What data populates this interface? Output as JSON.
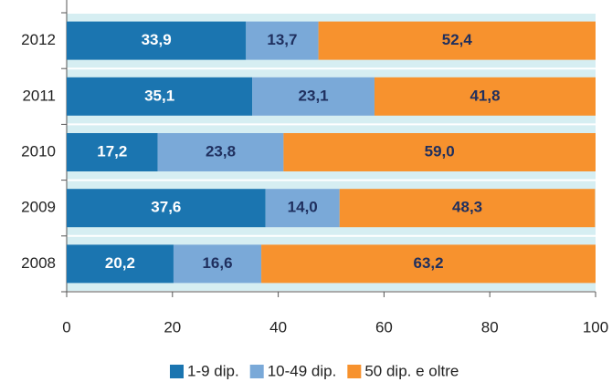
{
  "chart_data": {
    "type": "stacked-barh",
    "categories": [
      "2012",
      "2011",
      "2010",
      "2009",
      "2008"
    ],
    "series": [
      {
        "name": "1-9 dip.",
        "color": "#1b75b0",
        "label_color": "#ffffff",
        "values": [
          33.9,
          35.1,
          17.2,
          37.6,
          20.2
        ],
        "value_labels": [
          "33,9",
          "35,1",
          "17,2",
          "37,6",
          "20,2"
        ]
      },
      {
        "name": "10-49 dip.",
        "color": "#7aa9d8",
        "label_color": "#1f2f5e",
        "values": [
          13.7,
          23.1,
          23.8,
          14.0,
          16.6
        ],
        "value_labels": [
          "13,7",
          "23,1",
          "23,8",
          "14,0",
          "16,6"
        ]
      },
      {
        "name": "50 dip. e oltre",
        "color": "#f7922e",
        "label_color": "#1f2f5e",
        "values": [
          52.4,
          41.8,
          59.0,
          48.3,
          63.2
        ],
        "value_labels": [
          "52,4",
          "41,8",
          "59,0",
          "48,3",
          "63,2"
        ]
      }
    ],
    "xlim": [
      0,
      100
    ],
    "xticks": [
      0,
      20,
      40,
      60,
      80,
      100
    ],
    "legend": "bottom"
  }
}
